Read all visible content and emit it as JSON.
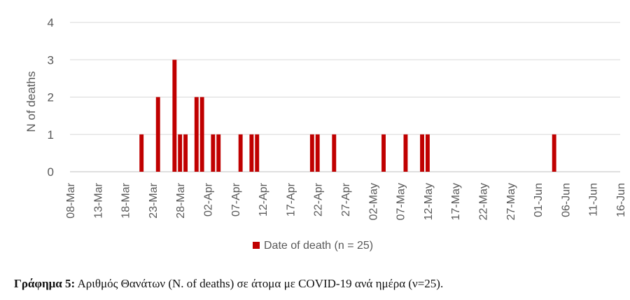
{
  "chart_data": {
    "type": "bar",
    "ylabel": "N of deaths",
    "xlabel": "",
    "ylim": [
      0,
      4
    ],
    "yticks": [
      0,
      1,
      2,
      3,
      4
    ],
    "grid": true,
    "legend_position": "bottom",
    "x_range": [
      "2020-03-08",
      "2020-06-16"
    ],
    "xticks": [
      "08-Mar",
      "13-Mar",
      "18-Mar",
      "23-Mar",
      "28-Mar",
      "02-Apr",
      "07-Apr",
      "12-Apr",
      "17-Apr",
      "22-Apr",
      "27-Apr",
      "02-May",
      "07-May",
      "12-May",
      "17-May",
      "22-May",
      "27-May",
      "01-Jun",
      "06-Jun",
      "11-Jun",
      "16-Jun"
    ],
    "series": [
      {
        "name": "Date of death (n = 25)",
        "color": "#C00000",
        "points": [
          {
            "date": "2020-03-21",
            "value": 1
          },
          {
            "date": "2020-03-24",
            "value": 2
          },
          {
            "date": "2020-03-27",
            "value": 3
          },
          {
            "date": "2020-03-28",
            "value": 1
          },
          {
            "date": "2020-03-29",
            "value": 1
          },
          {
            "date": "2020-03-31",
            "value": 2
          },
          {
            "date": "2020-04-01",
            "value": 2
          },
          {
            "date": "2020-04-03",
            "value": 1
          },
          {
            "date": "2020-04-04",
            "value": 1
          },
          {
            "date": "2020-04-08",
            "value": 1
          },
          {
            "date": "2020-04-10",
            "value": 1
          },
          {
            "date": "2020-04-11",
            "value": 1
          },
          {
            "date": "2020-04-21",
            "value": 1
          },
          {
            "date": "2020-04-22",
            "value": 1
          },
          {
            "date": "2020-04-25",
            "value": 1
          },
          {
            "date": "2020-05-04",
            "value": 1
          },
          {
            "date": "2020-05-08",
            "value": 1
          },
          {
            "date": "2020-05-11",
            "value": 1
          },
          {
            "date": "2020-05-12",
            "value": 1
          },
          {
            "date": "2020-06-04",
            "value": 1
          }
        ]
      }
    ]
  },
  "caption": {
    "label": "Γράφημα 5:",
    "text": " Αριθμός Θανάτων (N. of deaths) σε άτομα με COVID-19 ανά ημέρα (ν=25)."
  }
}
